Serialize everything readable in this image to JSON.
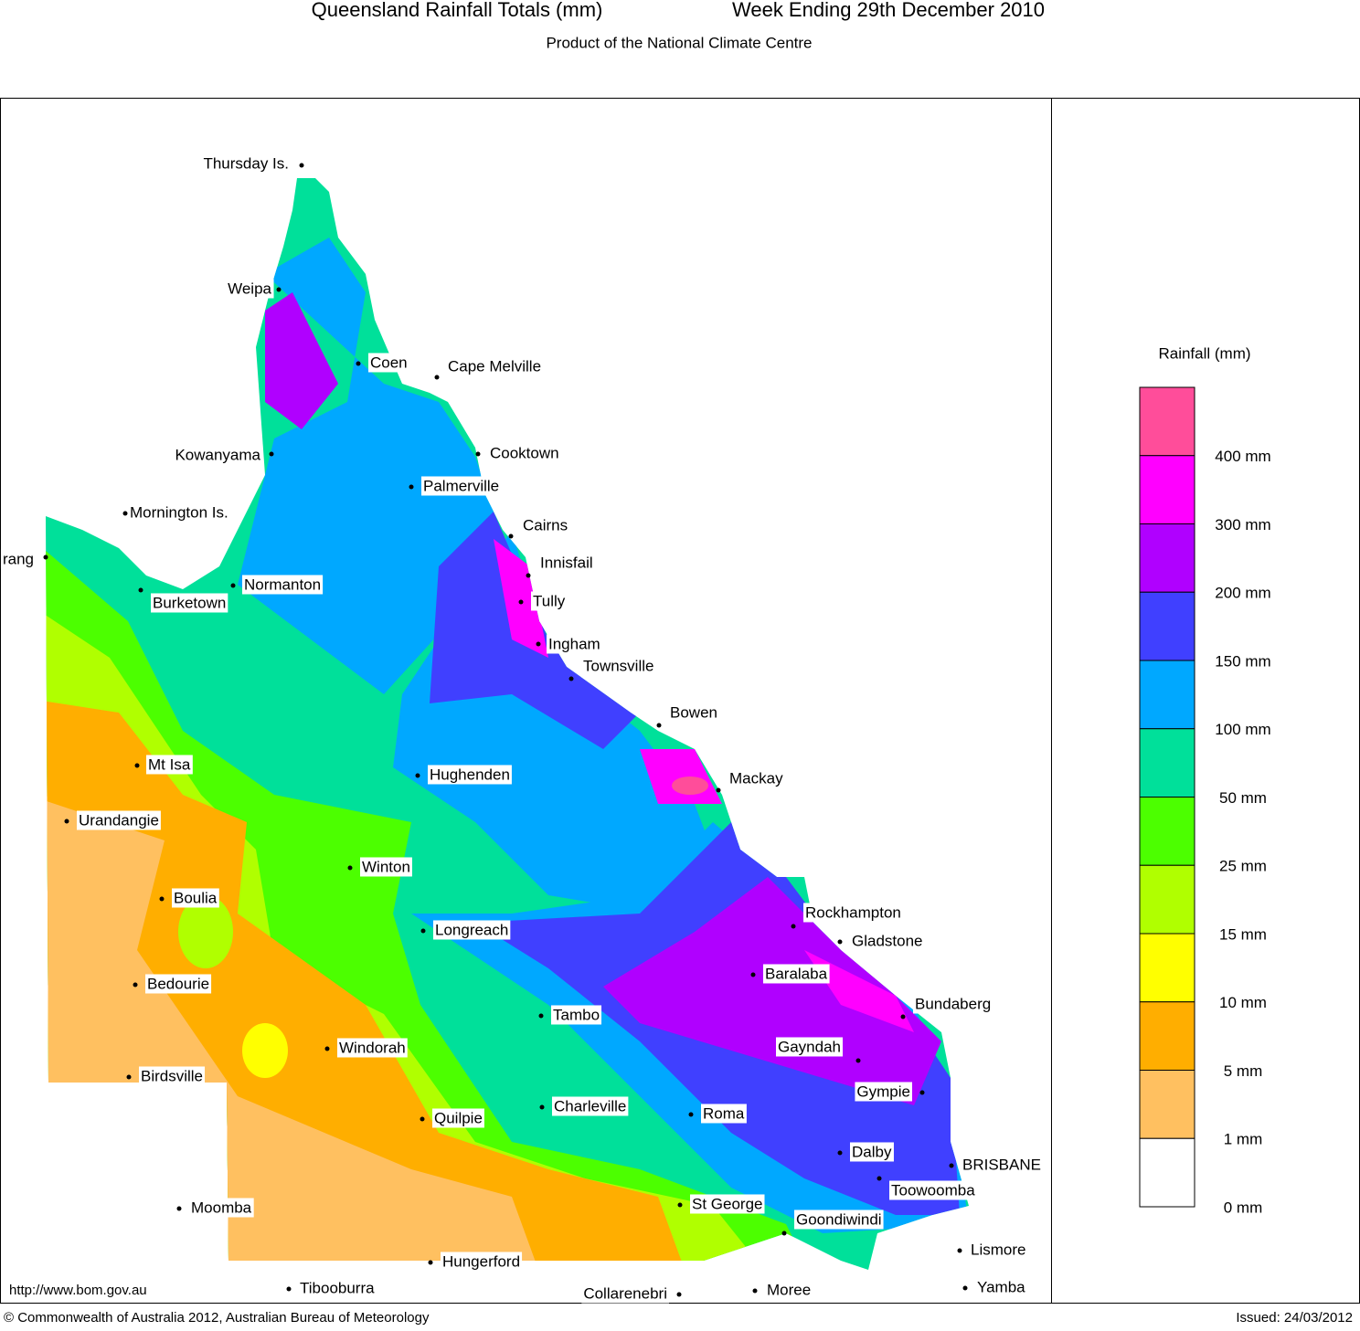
{
  "header": {
    "title": "Queensland Rainfall Totals (mm)",
    "week": "Week Ending 29th December 2010",
    "subtitle": "Product of the National Climate Centre"
  },
  "legend": {
    "title": "Rainfall (mm)",
    "items": [
      {
        "label": "400 mm",
        "color": "#ff4d9a"
      },
      {
        "label": "300 mm",
        "color": "#ff00ff"
      },
      {
        "label": "200 mm",
        "color": "#b000ff"
      },
      {
        "label": "150 mm",
        "color": "#4040ff"
      },
      {
        "label": "100 mm",
        "color": "#00a8ff"
      },
      {
        "label": "50 mm",
        "color": "#00e09a"
      },
      {
        "label": "25 mm",
        "color": "#4cff00"
      },
      {
        "label": "15 mm",
        "color": "#b0ff00"
      },
      {
        "label": "10 mm",
        "color": "#ffff00"
      },
      {
        "label": "5 mm",
        "color": "#ffae00"
      },
      {
        "label": "1 mm",
        "color": "#ffc060"
      },
      {
        "label": "0 mm",
        "color": "#ffffff"
      }
    ]
  },
  "towns": [
    "Thursday Is.",
    "Weipa",
    "Coen",
    "Cape Melville",
    "Kowanyama",
    "Cooktown",
    "Palmerville",
    "Mornington Is.",
    "Cairns",
    "Innisfail",
    "Tully",
    "Ingham",
    "Townsville",
    "Bowen",
    "Mackay",
    "Normanton",
    "Burketown",
    "rang",
    "Mt Isa",
    "Hughenden",
    "Urandangie",
    "Winton",
    "Boulia",
    "Longreach",
    "Rockhampton",
    "Gladstone",
    "Baralaba",
    "Bedourie",
    "Bundaberg",
    "Tambo",
    "Windorah",
    "Gayndah",
    "Birdsville",
    "Gympie",
    "Charleville",
    "Roma",
    "Quilpie",
    "Dalby",
    "BRISBANE",
    "Toowoomba",
    "Moomba",
    "St George",
    "Goondiwindi",
    "Lismore",
    "Hungerford",
    "Tibooburra",
    "Collarenebri",
    "Moree",
    "Yamba"
  ],
  "footer": {
    "url": "http://www.bom.gov.au",
    "copyright": "© Commonwealth of Australia 2012, Australian Bureau of Meteorology",
    "issued": "Issued: 24/03/2012"
  }
}
